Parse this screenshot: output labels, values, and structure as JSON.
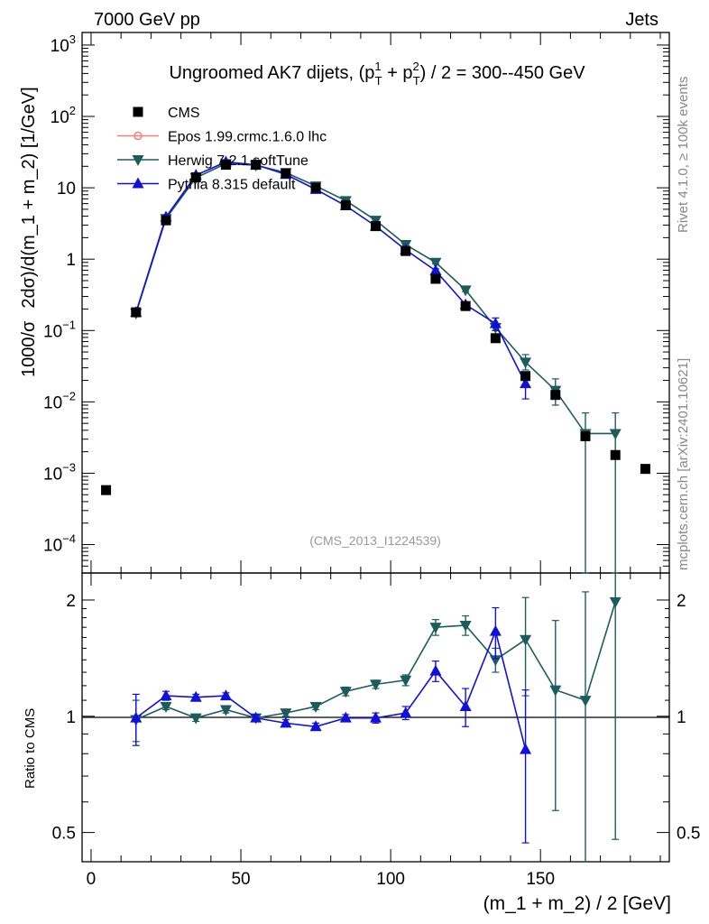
{
  "header": {
    "left": "7000 GeV pp",
    "right": "Jets"
  },
  "side_labels": {
    "rivet": "Rivet 4.1.0, ≥ 100k events",
    "mcplots": "mcplots.cern.ch [arXiv:2401.10621]"
  },
  "chart_data": {
    "type": "scatter",
    "title": "Ungroomed AK7 dijets, (pT1 + pT2) / 2 = 300--450 GeV",
    "title_parts": {
      "prefix": "Ungroomed AK7 dijets, (p",
      "sup1": "1",
      "sub1": "T",
      "mid": " + p",
      "sup2": "2",
      "sub2": "T",
      "suffix": ") / 2 = 300--450 GeV"
    },
    "analysis_id": "(CMS_2013_I1224539)",
    "xlabel": "(m_1 + m_2) / 2 [GeV]",
    "ylabel_main": "1000/σ   2dσ)/d(m_1 + m_2) [1/GeV]",
    "ylabel_main_parts": {
      "a": "1000/σ",
      "b": "2dσ)/d(m_1 + m_2) [1/GeV]"
    },
    "ylabel_ratio": "Ratio to CMS",
    "xlim": [
      -3,
      193
    ],
    "ylim_main": [
      4e-05,
      1500
    ],
    "ylim_ratio": [
      0.42,
      2.35
    ],
    "x_ticks": [
      0,
      50,
      100,
      150
    ],
    "y_ticks_main": [
      {
        "v": 1000,
        "base": "10",
        "exp": "3"
      },
      {
        "v": 100,
        "base": "10",
        "exp": "2"
      },
      {
        "v": 10,
        "base": "10",
        "exp": ""
      },
      {
        "v": 1,
        "base": "1",
        "exp": ""
      },
      {
        "v": 0.1,
        "base": "10",
        "exp": "−1"
      },
      {
        "v": 0.01,
        "base": "10",
        "exp": "−2"
      },
      {
        "v": 0.001,
        "base": "10",
        "exp": "−3"
      },
      {
        "v": 0.0001,
        "base": "10",
        "exp": "−4"
      }
    ],
    "y_ticks_ratio": [
      {
        "v": 0.5,
        "label": "0.5"
      },
      {
        "v": 1,
        "label": "1"
      },
      {
        "v": 2,
        "label": "2"
      }
    ],
    "legend": [
      {
        "name": "CMS",
        "marker": "square",
        "color": "#000000"
      },
      {
        "name": "Epos 1.99.crmc.1.6.0 lhc",
        "marker": "circle-open",
        "color": "#f08080"
      },
      {
        "name": "Herwig 7.2.1 softTune",
        "marker": "triangle-down",
        "color": "#1d5c5c"
      },
      {
        "name": "Pythia 8.315 default",
        "marker": "triangle-up",
        "color": "#1010dd"
      }
    ],
    "series": [
      {
        "name": "CMS",
        "marker": "square",
        "color": "#000000",
        "x": [
          5,
          15,
          25,
          35,
          45,
          55,
          65,
          75,
          85,
          95,
          105,
          115,
          125,
          135,
          145,
          155,
          165,
          175,
          185
        ],
        "y": [
          0.00058,
          0.18,
          3.5,
          14,
          21,
          21,
          16,
          10,
          5.7,
          2.9,
          1.3,
          0.53,
          0.22,
          0.078,
          0.023,
          0.0125,
          0.0033,
          0.0018,
          0.00115
        ]
      },
      {
        "name": "Herwig 7.2.1 softTune",
        "marker": "triangle-down",
        "color": "#1d5c5c",
        "x": [
          15,
          25,
          35,
          45,
          55,
          65,
          75,
          85,
          95,
          105,
          115,
          125,
          135,
          145,
          155,
          165,
          175
        ],
        "y": [
          0.175,
          3.7,
          13.8,
          21.8,
          20.7,
          16.3,
          10.6,
          6.6,
          3.5,
          1.6,
          0.9,
          0.37,
          0.11,
          0.036,
          0.0145,
          0.0036,
          0.0036
        ],
        "err_lo": [
          0.01,
          0.1,
          0.3,
          0.4,
          0.4,
          0.3,
          0.2,
          0.15,
          0.1,
          0.05,
          0.04,
          0.02,
          0.01,
          0.008,
          0.0055,
          0.00359,
          0.00359
        ],
        "err_hi": [
          0.01,
          0.1,
          0.3,
          0.4,
          0.4,
          0.3,
          0.2,
          0.15,
          0.1,
          0.05,
          0.04,
          0.02,
          0.015,
          0.01,
          0.0065,
          0.0034,
          0.0034
        ],
        "ratio": [
          0.98,
          1.06,
          0.99,
          1.04,
          0.99,
          1.02,
          1.06,
          1.16,
          1.21,
          1.24,
          1.7,
          1.72,
          1.4,
          1.58,
          1.17,
          1.1,
          1.98
        ],
        "ratio_err": [
          0.12,
          0.02,
          0.02,
          0.02,
          0.02,
          0.02,
          0.02,
          0.03,
          0.03,
          0.04,
          0.08,
          0.1,
          0.1,
          0.45,
          0.6,
          1.0,
          1.5
        ]
      },
      {
        "name": "Pythia 8.315 default",
        "marker": "triangle-up",
        "color": "#1010dd",
        "x": [
          15,
          25,
          35,
          45,
          55,
          65,
          75,
          85,
          95,
          105,
          115,
          125,
          135,
          145
        ],
        "y": [
          0.18,
          3.9,
          15,
          23,
          21,
          15.4,
          9.5,
          5.6,
          2.9,
          1.35,
          0.69,
          0.23,
          0.125,
          0.018
        ],
        "err_lo": [
          0.01,
          0.1,
          0.3,
          0.4,
          0.4,
          0.3,
          0.2,
          0.15,
          0.1,
          0.05,
          0.04,
          0.02,
          0.025,
          0.007
        ],
        "err_hi": [
          0.01,
          0.1,
          0.3,
          0.4,
          0.4,
          0.3,
          0.2,
          0.15,
          0.1,
          0.05,
          0.04,
          0.02,
          0.025,
          0.007
        ],
        "ratio": [
          0.99,
          1.13,
          1.12,
          1.13,
          0.99,
          0.96,
          0.94,
          0.99,
          0.99,
          1.02,
          1.31,
          1.06,
          1.66,
          0.82
        ],
        "ratio_err": [
          0.15,
          0.03,
          0.02,
          0.02,
          0.02,
          0.02,
          0.02,
          0.02,
          0.03,
          0.04,
          0.08,
          0.12,
          0.25,
          0.35
        ]
      }
    ]
  }
}
